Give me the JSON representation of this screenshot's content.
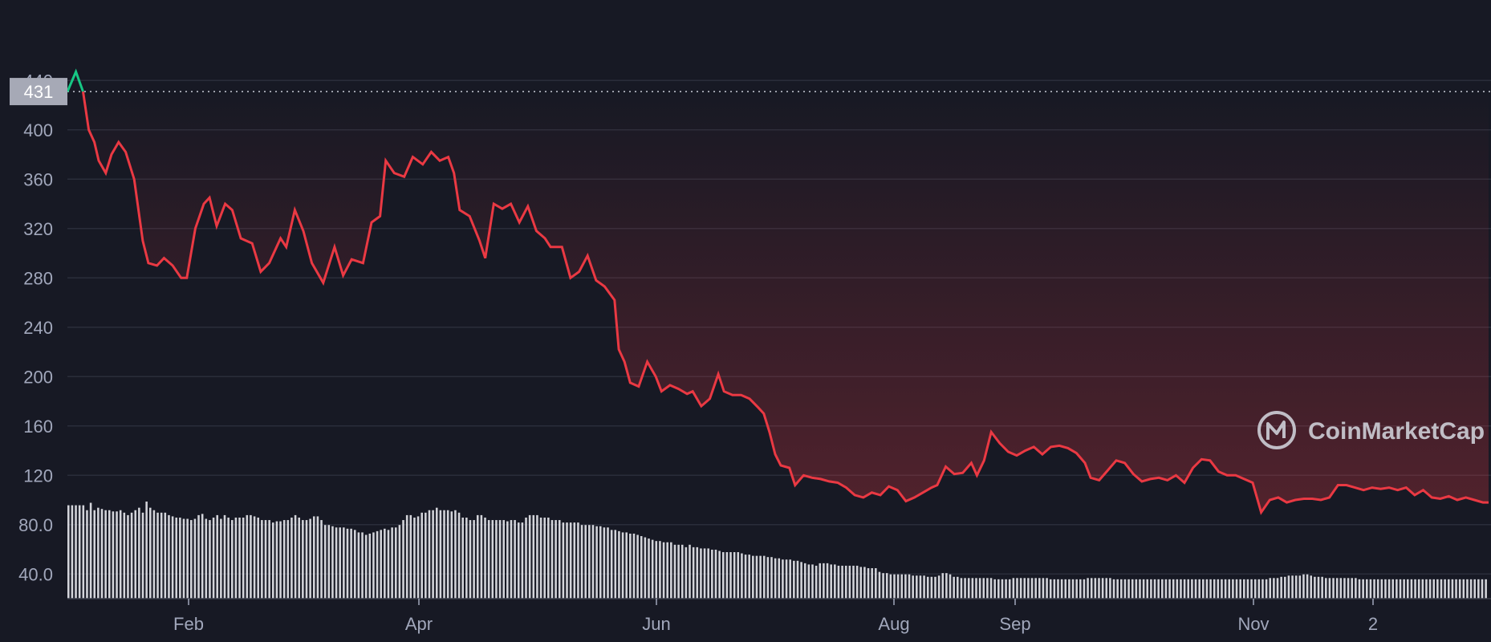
{
  "watermark": "CoinMarketCap",
  "colors": {
    "background": "#171924",
    "line_down": "#ea3943",
    "line_up": "#16c784",
    "grid": "#2a2d3a",
    "volume": "#e8e9ee",
    "reference_box": "#a6a9b6"
  },
  "reference_value_label": "431",
  "chart_data": {
    "type": "line",
    "ylim": [
      20,
      450
    ],
    "y_ticks": [
      "40.0",
      "80.0",
      "120",
      "160",
      "200",
      "240",
      "280",
      "320",
      "360",
      "400",
      "440"
    ],
    "x_ticks": [
      "Feb",
      "Apr",
      "Jun",
      "Aug",
      "Sep",
      "Nov",
      "2"
    ],
    "reference_line": 431,
    "grid": true,
    "price_series": [
      [
        0,
        431
      ],
      [
        0.006,
        447
      ],
      [
        0.011,
        431
      ],
      [
        0.015,
        400
      ],
      [
        0.019,
        390
      ],
      [
        0.022,
        375
      ],
      [
        0.027,
        365
      ],
      [
        0.031,
        380
      ],
      [
        0.036,
        390
      ],
      [
        0.041,
        382
      ],
      [
        0.047,
        360
      ],
      [
        0.053,
        310
      ],
      [
        0.057,
        292
      ],
      [
        0.063,
        290
      ],
      [
        0.068,
        296
      ],
      [
        0.074,
        290
      ],
      [
        0.08,
        280
      ],
      [
        0.084,
        280
      ],
      [
        0.09,
        320
      ],
      [
        0.096,
        340
      ],
      [
        0.1,
        345
      ],
      [
        0.105,
        322
      ],
      [
        0.111,
        340
      ],
      [
        0.116,
        335
      ],
      [
        0.122,
        312
      ],
      [
        0.13,
        308
      ],
      [
        0.136,
        285
      ],
      [
        0.142,
        292
      ],
      [
        0.15,
        312
      ],
      [
        0.154,
        305
      ],
      [
        0.16,
        335
      ],
      [
        0.166,
        318
      ],
      [
        0.172,
        292
      ],
      [
        0.18,
        276
      ],
      [
        0.188,
        305
      ],
      [
        0.194,
        282
      ],
      [
        0.2,
        295
      ],
      [
        0.208,
        292
      ],
      [
        0.214,
        325
      ],
      [
        0.22,
        330
      ],
      [
        0.224,
        375
      ],
      [
        0.23,
        365
      ],
      [
        0.237,
        362
      ],
      [
        0.243,
        378
      ],
      [
        0.25,
        372
      ],
      [
        0.256,
        382
      ],
      [
        0.262,
        375
      ],
      [
        0.268,
        378
      ],
      [
        0.272,
        365
      ],
      [
        0.276,
        335
      ],
      [
        0.283,
        330
      ],
      [
        0.29,
        310
      ],
      [
        0.294,
        296
      ],
      [
        0.3,
        340
      ],
      [
        0.306,
        336
      ],
      [
        0.312,
        340
      ],
      [
        0.318,
        325
      ],
      [
        0.324,
        338
      ],
      [
        0.33,
        318
      ],
      [
        0.336,
        312
      ],
      [
        0.34,
        305
      ],
      [
        0.348,
        305
      ],
      [
        0.354,
        280
      ],
      [
        0.36,
        285
      ],
      [
        0.366,
        298
      ],
      [
        0.372,
        278
      ],
      [
        0.378,
        273
      ],
      [
        0.385,
        262
      ],
      [
        0.388,
        222
      ],
      [
        0.392,
        212
      ],
      [
        0.396,
        195
      ],
      [
        0.402,
        192
      ],
      [
        0.408,
        212
      ],
      [
        0.414,
        200
      ],
      [
        0.418,
        188
      ],
      [
        0.424,
        193
      ],
      [
        0.43,
        190
      ],
      [
        0.436,
        186
      ],
      [
        0.44,
        188
      ],
      [
        0.446,
        176
      ],
      [
        0.452,
        182
      ],
      [
        0.458,
        202
      ],
      [
        0.462,
        188
      ],
      [
        0.468,
        185
      ],
      [
        0.474,
        185
      ],
      [
        0.48,
        182
      ],
      [
        0.486,
        175
      ],
      [
        0.49,
        170
      ],
      [
        0.494,
        155
      ],
      [
        0.498,
        137
      ],
      [
        0.502,
        128
      ],
      [
        0.508,
        126
      ],
      [
        0.512,
        112
      ],
      [
        0.518,
        120
      ],
      [
        0.524,
        118
      ],
      [
        0.53,
        117
      ],
      [
        0.536,
        115
      ],
      [
        0.542,
        114
      ],
      [
        0.548,
        110
      ],
      [
        0.554,
        104
      ],
      [
        0.56,
        102
      ],
      [
        0.566,
        106
      ],
      [
        0.572,
        104
      ],
      [
        0.578,
        111
      ],
      [
        0.584,
        108
      ],
      [
        0.59,
        99
      ],
      [
        0.596,
        102
      ],
      [
        0.602,
        106
      ],
      [
        0.608,
        110
      ],
      [
        0.612,
        112
      ],
      [
        0.618,
        127
      ],
      [
        0.624,
        121
      ],
      [
        0.63,
        122
      ],
      [
        0.636,
        130
      ],
      [
        0.64,
        120
      ],
      [
        0.645,
        132
      ],
      [
        0.65,
        155
      ],
      [
        0.656,
        146
      ],
      [
        0.662,
        139
      ],
      [
        0.668,
        136
      ],
      [
        0.674,
        140
      ],
      [
        0.68,
        143
      ],
      [
        0.686,
        137
      ],
      [
        0.692,
        143
      ],
      [
        0.698,
        144
      ],
      [
        0.704,
        142
      ],
      [
        0.71,
        138
      ],
      [
        0.716,
        130
      ],
      [
        0.72,
        118
      ],
      [
        0.726,
        116
      ],
      [
        0.732,
        124
      ],
      [
        0.738,
        132
      ],
      [
        0.744,
        130
      ],
      [
        0.75,
        121
      ],
      [
        0.756,
        115
      ],
      [
        0.762,
        117
      ],
      [
        0.768,
        118
      ],
      [
        0.774,
        116
      ],
      [
        0.78,
        120
      ],
      [
        0.786,
        114
      ],
      [
        0.792,
        126
      ],
      [
        0.798,
        133
      ],
      [
        0.804,
        132
      ],
      [
        0.81,
        123
      ],
      [
        0.816,
        120
      ],
      [
        0.822,
        120
      ],
      [
        0.828,
        117
      ],
      [
        0.834,
        114
      ],
      [
        0.84,
        118
      ],
      [
        0.846,
        113
      ],
      [
        0.852,
        119
      ],
      [
        0.858,
        117
      ],
      [
        0.864,
        115
      ],
      [
        0.87,
        119
      ],
      [
        0.876,
        116
      ],
      [
        0.882,
        115
      ],
      [
        0.888,
        120
      ],
      [
        0.894,
        115
      ],
      [
        0.9,
        113
      ],
      [
        0.906,
        111
      ],
      [
        0.912,
        113
      ],
      [
        0.918,
        109
      ],
      [
        0.924,
        110
      ],
      [
        0.93,
        106
      ],
      [
        0.936,
        107
      ],
      [
        0.942,
        110
      ],
      [
        0.948,
        112
      ],
      [
        0.954,
        114
      ],
      [
        0.96,
        117
      ],
      [
        0.966,
        116
      ],
      [
        0.972,
        116
      ],
      [
        0.976,
        118
      ],
      [
        0.982,
        115
      ],
      [
        0.988,
        125
      ],
      [
        0.992,
        116
      ],
      [
        0.996,
        104
      ]
    ],
    "price_series_tail": [
      [
        0.84,
        90
      ],
      [
        0.846,
        100
      ],
      [
        0.852,
        102
      ],
      [
        0.858,
        98
      ],
      [
        0.864,
        100
      ],
      [
        0.87,
        101
      ],
      [
        0.876,
        101
      ],
      [
        0.882,
        100
      ],
      [
        0.888,
        102
      ],
      [
        0.894,
        112
      ],
      [
        0.9,
        112
      ],
      [
        0.906,
        110
      ],
      [
        0.912,
        108
      ],
      [
        0.918,
        110
      ],
      [
        0.924,
        109
      ],
      [
        0.93,
        110
      ],
      [
        0.936,
        108
      ],
      [
        0.942,
        110
      ],
      [
        0.948,
        104
      ],
      [
        0.954,
        108
      ],
      [
        0.96,
        102
      ],
      [
        0.966,
        101
      ],
      [
        0.972,
        103
      ],
      [
        0.978,
        100
      ],
      [
        0.984,
        102
      ],
      [
        0.99,
        100
      ],
      [
        0.996,
        98
      ],
      [
        1.0,
        98
      ]
    ],
    "volume": [
      84,
      84,
      84,
      84,
      84,
      80,
      86,
      80,
      82,
      81,
      80,
      80,
      79,
      79,
      80,
      78,
      76,
      78,
      80,
      82,
      78,
      87,
      82,
      80,
      78,
      78,
      78,
      76,
      75,
      74,
      74,
      73,
      73,
      72,
      73,
      76,
      77,
      73,
      72,
      74,
      76,
      73,
      76,
      74,
      72,
      74,
      74,
      74,
      76,
      76,
      75,
      74,
      72,
      72,
      72,
      70,
      71,
      71,
      72,
      72,
      74,
      76,
      74,
      72,
      72,
      73,
      75,
      75,
      72,
      68,
      68,
      67,
      66,
      66,
      66,
      65,
      65,
      64,
      62,
      62,
      60,
      61,
      62,
      63,
      64,
      65,
      64,
      66,
      66,
      68,
      72,
      76,
      76,
      74,
      75,
      78,
      78,
      80,
      80,
      82,
      80,
      80,
      80,
      79,
      80,
      78,
      74,
      74,
      72,
      72,
      76,
      76,
      74,
      72,
      72,
      72,
      72,
      72,
      71,
      72,
      72,
      70,
      70,
      74,
      76,
      76,
      76,
      74,
      74,
      74,
      72,
      72,
      72,
      70,
      70,
      70,
      70,
      70,
      68,
      68,
      68,
      68,
      67,
      67,
      66,
      66,
      64,
      64,
      63,
      62,
      62,
      61,
      61,
      60,
      59,
      58,
      57,
      56,
      55,
      55,
      54,
      54,
      54,
      52,
      52,
      52,
      50,
      52,
      50,
      50,
      49,
      49,
      49,
      48,
      48,
      47,
      46,
      46,
      46,
      46,
      46,
      45,
      44,
      44,
      43,
      43,
      43,
      43,
      42,
      42,
      41,
      41,
      40,
      40,
      40,
      39,
      39,
      38,
      37,
      36,
      36,
      35,
      37,
      37,
      37,
      36,
      36,
      35,
      35,
      35,
      35,
      35,
      35,
      34,
      34,
      33,
      33,
      33,
      30,
      29,
      29,
      28,
      28,
      28,
      28,
      28,
      28,
      27,
      27,
      27,
      27,
      26,
      26,
      26,
      27,
      29,
      29,
      28,
      26,
      26,
      25,
      25,
      25,
      25,
      25,
      25,
      25,
      25,
      25,
      24,
      24,
      24,
      24,
      24,
      25,
      25,
      25,
      25,
      25,
      25,
      25,
      25,
      25,
      25,
      24,
      24,
      24,
      24,
      24,
      24,
      24,
      24,
      24,
      24,
      25,
      25,
      25,
      25,
      25,
      25,
      25,
      24,
      24,
      24,
      24,
      24,
      24,
      24,
      24,
      24,
      24,
      24,
      24,
      24,
      24,
      24,
      24,
      24,
      24,
      24,
      24,
      24,
      24,
      24,
      24,
      24,
      24,
      24,
      24,
      24,
      24,
      24,
      24,
      24,
      24,
      24,
      24,
      24,
      24,
      24,
      24,
      24,
      24,
      25,
      25,
      25,
      26,
      26,
      27,
      27,
      27,
      27,
      28,
      28,
      27,
      26,
      26,
      26,
      25,
      25,
      25,
      25,
      25,
      25,
      25,
      25,
      25,
      24,
      24,
      24,
      24,
      24,
      24,
      24,
      24,
      24,
      24,
      24,
      24,
      24,
      24,
      24,
      24,
      24,
      24,
      24,
      24,
      24,
      24,
      24,
      24,
      24,
      24,
      24,
      24,
      24,
      24,
      24,
      24,
      24,
      24,
      24
    ]
  }
}
